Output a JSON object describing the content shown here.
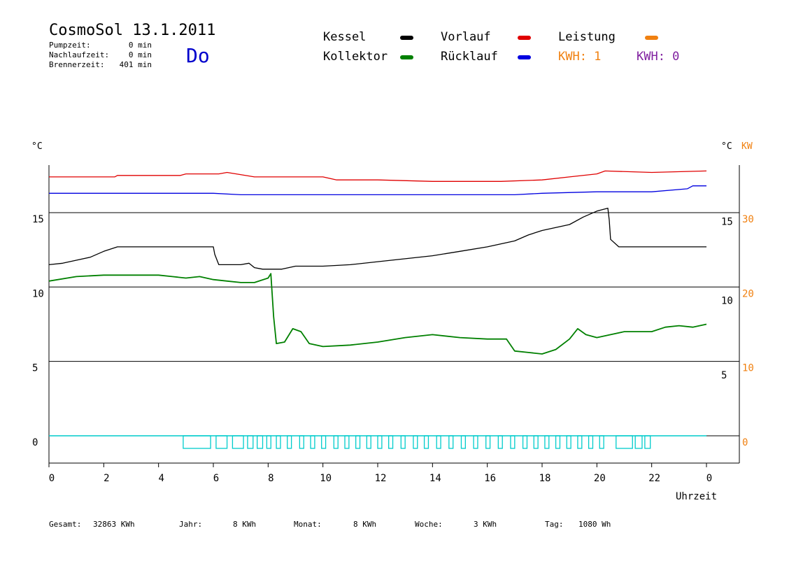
{
  "chart_data": {
    "type": "line",
    "title": "CosmoSol 13.1.2011",
    "day": "Do",
    "info": [
      {
        "label": "Pumpzeit:",
        "value": "0 min"
      },
      {
        "label": "Nachlaufzeit:",
        "value": "0 min"
      },
      {
        "label": "Brennerzeit:",
        "value": "401 min"
      }
    ],
    "legend": [
      {
        "name": "Kessel",
        "color": "#000000"
      },
      {
        "name": "Vorlauf",
        "color": "#e00000"
      },
      {
        "name": "Leistung",
        "color": "#f08010"
      },
      {
        "name": "Kollektor",
        "color": "#008000"
      },
      {
        "name": "Rücklauf",
        "color": "#0000e0"
      }
    ],
    "kwh": [
      {
        "text": "KWH: 1",
        "color": "#f08010"
      },
      {
        "text": "KWH: 0",
        "color": "#8020a0"
      }
    ],
    "y_left_unit": "°C",
    "y_right_unit": "°C",
    "y_right_unit2": "KW",
    "xlabel": "Uhrzeit",
    "x_ticks": [
      "0",
      "2",
      "4",
      "6",
      "8",
      "10",
      "12",
      "14",
      "16",
      "18",
      "20",
      "22",
      "0"
    ],
    "xlim": [
      0,
      24
    ],
    "ylim": [
      -2,
      20.5
    ],
    "y_left_ticks": [
      "15",
      "10",
      "5",
      "0"
    ],
    "y_left_tick_values": [
      15,
      10,
      5,
      0
    ],
    "y_right_ticks": [
      "15",
      "10",
      "5"
    ],
    "y_right_tick_values": [
      14.4,
      9.1,
      4.1
    ],
    "kw_ticks": [
      "30",
      "20",
      "10",
      "0"
    ],
    "kw_tick_values": [
      15,
      10,
      5,
      0
    ],
    "grid_lines": [
      15,
      10,
      5,
      0
    ],
    "series": [
      {
        "name": "Vorlauf",
        "color": "#e00000",
        "x": [
          0,
          2.4,
          2.5,
          4.8,
          5.0,
          6.2,
          6.5,
          7.5,
          10.0,
          10.5,
          12.0,
          14.0,
          16.5,
          18.0,
          19.0,
          20.0,
          20.3,
          22.0,
          24.0
        ],
        "y": [
          17.4,
          17.4,
          17.5,
          17.5,
          17.6,
          17.6,
          17.7,
          17.4,
          17.4,
          17.2,
          17.2,
          17.1,
          17.1,
          17.2,
          17.4,
          17.6,
          17.8,
          17.7,
          17.8
        ]
      },
      {
        "name": "Rücklauf",
        "color": "#0000e0",
        "x": [
          0,
          1.5,
          3.0,
          6.0,
          7.0,
          10.0,
          12.0,
          14.0,
          16.0,
          17.0,
          18.0,
          20.0,
          22.0,
          23.3,
          23.5,
          24.0
        ],
        "y": [
          16.3,
          16.3,
          16.3,
          16.3,
          16.2,
          16.2,
          16.2,
          16.2,
          16.2,
          16.2,
          16.3,
          16.4,
          16.4,
          16.6,
          16.8,
          16.8
        ]
      },
      {
        "name": "Kessel",
        "color": "#000000",
        "x": [
          0,
          0.5,
          1.0,
          1.5,
          2.0,
          2.5,
          6.0,
          6.05,
          6.2,
          6.5,
          7.0,
          7.3,
          7.5,
          7.8,
          8.5,
          9.0,
          10.0,
          11.0,
          12.0,
          13.0,
          14.0,
          15.0,
          16.0,
          17.0,
          17.5,
          18.0,
          18.5,
          19.0,
          19.5,
          20.0,
          20.4,
          20.45,
          20.5,
          20.8,
          24.0
        ],
        "y": [
          11.5,
          11.6,
          11.8,
          12.0,
          12.4,
          12.7,
          12.7,
          12.2,
          11.5,
          11.5,
          11.5,
          11.6,
          11.3,
          11.2,
          11.2,
          11.4,
          11.4,
          11.5,
          11.7,
          11.9,
          12.1,
          12.4,
          12.7,
          13.1,
          13.5,
          13.8,
          14.0,
          14.2,
          14.7,
          15.1,
          15.3,
          14.5,
          13.2,
          12.7,
          12.7
        ]
      },
      {
        "name": "Kollektor",
        "color": "#008000",
        "x": [
          0,
          1.0,
          2.0,
          3.0,
          4.0,
          4.5,
          5.0,
          5.5,
          6.0,
          6.5,
          7.0,
          7.5,
          8.0,
          8.1,
          8.2,
          8.3,
          8.6,
          8.9,
          9.2,
          9.5,
          10.0,
          11.0,
          12.0,
          13.0,
          14.0,
          15.0,
          16.0,
          16.7,
          17.0,
          17.5,
          18.0,
          18.5,
          19.0,
          19.3,
          19.6,
          20.0,
          20.5,
          21.0,
          22.0,
          22.5,
          23.0,
          23.5,
          24.0
        ],
        "y": [
          10.4,
          10.7,
          10.8,
          10.8,
          10.8,
          10.7,
          10.6,
          10.7,
          10.5,
          10.4,
          10.3,
          10.3,
          10.6,
          10.9,
          8.0,
          6.2,
          6.3,
          7.2,
          7.0,
          6.2,
          6.0,
          6.1,
          6.3,
          6.6,
          6.8,
          6.6,
          6.5,
          6.5,
          5.7,
          5.6,
          5.5,
          5.8,
          6.5,
          7.2,
          6.8,
          6.6,
          6.8,
          7.0,
          7.0,
          7.3,
          7.4,
          7.3,
          7.5
        ]
      },
      {
        "name": "Pumpe",
        "color": "#00cccc",
        "blocks": [
          [
            4.9,
            5.9
          ],
          [
            6.1,
            6.5
          ],
          [
            6.7,
            7.1
          ],
          [
            7.25,
            7.45
          ],
          [
            7.6,
            7.8
          ],
          [
            7.95,
            8.1
          ],
          [
            8.3,
            8.45
          ],
          [
            8.7,
            8.85
          ],
          [
            9.15,
            9.3
          ],
          [
            9.55,
            9.7
          ],
          [
            9.95,
            10.1
          ],
          [
            10.4,
            10.55
          ],
          [
            10.8,
            10.95
          ],
          [
            11.2,
            11.35
          ],
          [
            11.6,
            11.75
          ],
          [
            12.0,
            12.15
          ],
          [
            12.4,
            12.55
          ],
          [
            12.85,
            13.0
          ],
          [
            13.3,
            13.45
          ],
          [
            13.7,
            13.85
          ],
          [
            14.15,
            14.3
          ],
          [
            14.6,
            14.75
          ],
          [
            15.05,
            15.2
          ],
          [
            15.5,
            15.65
          ],
          [
            15.95,
            16.1
          ],
          [
            16.4,
            16.55
          ],
          [
            16.85,
            17.0
          ],
          [
            17.3,
            17.45
          ],
          [
            17.7,
            17.85
          ],
          [
            18.1,
            18.25
          ],
          [
            18.5,
            18.65
          ],
          [
            18.9,
            19.05
          ],
          [
            19.3,
            19.45
          ],
          [
            19.7,
            19.85
          ],
          [
            20.1,
            20.25
          ],
          [
            20.7,
            21.3
          ],
          [
            21.4,
            21.65
          ],
          [
            21.75,
            21.95
          ]
        ]
      }
    ],
    "summary": [
      {
        "label": "Gesamt:",
        "value": "32863 KWh"
      },
      {
        "label": "Jahr:",
        "value": "8 KWh"
      },
      {
        "label": "Monat:",
        "value": "8 KWh"
      },
      {
        "label": "Woche:",
        "value": "3 KWh"
      },
      {
        "label": "Tag:",
        "value": "1080 Wh"
      }
    ]
  }
}
